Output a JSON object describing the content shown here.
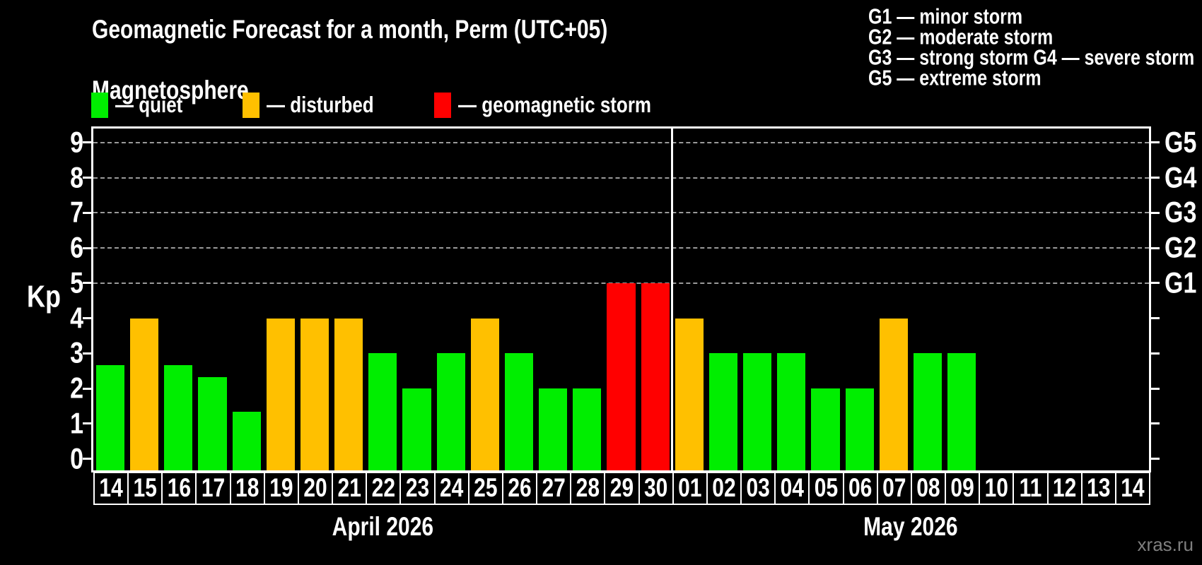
{
  "header": {
    "title": "Geomagnetic Forecast for a month, Perm (UTC+05)",
    "subtitle": "Magnetosphere",
    "watermark": "xras.ru"
  },
  "legend": {
    "items": [
      {
        "label": "— quiet",
        "status": "quiet"
      },
      {
        "label": "— disturbed",
        "status": "disturbed"
      },
      {
        "label": "— geomagnetic storm",
        "status": "storm"
      }
    ]
  },
  "storm_scale_legend": [
    "G1 — minor storm",
    "G2 — moderate storm",
    "G3 — strong storm",
    "G4 — severe storm",
    "G5 — extreme storm"
  ],
  "colors": {
    "quiet": "#00ee00",
    "disturbed": "#ffc000",
    "storm": "#ff0000",
    "axis": "#ffffff",
    "grid": "#9a9a9a",
    "watermark": "#7f7f7f"
  },
  "chart_data": {
    "type": "bar",
    "title": "Geomagnetic Forecast for a month, Perm (UTC+05)",
    "ylabel": "Kp",
    "yticks": [
      0,
      1,
      2,
      3,
      4,
      5,
      6,
      7,
      8,
      9
    ],
    "ylim": [
      -0.33,
      9.4
    ],
    "grid": "dashed horizontal lines at Kp 5-9",
    "grid_levels": [
      {
        "kp": 5,
        "label": "G1"
      },
      {
        "kp": 6,
        "label": "G2"
      },
      {
        "kp": 7,
        "label": "G3"
      },
      {
        "kp": 8,
        "label": "G4"
      },
      {
        "kp": 9,
        "label": "G5"
      }
    ],
    "months": [
      {
        "label": "April 2026",
        "days": 17
      },
      {
        "label": "May 2026",
        "days": 14
      }
    ],
    "days": [
      {
        "day": "14",
        "kp": 2.67,
        "status": "quiet"
      },
      {
        "day": "15",
        "kp": 4,
        "status": "disturbed"
      },
      {
        "day": "16",
        "kp": 2.67,
        "status": "quiet"
      },
      {
        "day": "17",
        "kp": 2.33,
        "status": "quiet"
      },
      {
        "day": "18",
        "kp": 1.33,
        "status": "quiet"
      },
      {
        "day": "19",
        "kp": 4,
        "status": "disturbed"
      },
      {
        "day": "20",
        "kp": 4,
        "status": "disturbed"
      },
      {
        "day": "21",
        "kp": 4,
        "status": "disturbed"
      },
      {
        "day": "22",
        "kp": 3,
        "status": "quiet"
      },
      {
        "day": "23",
        "kp": 2,
        "status": "quiet"
      },
      {
        "day": "24",
        "kp": 3,
        "status": "quiet"
      },
      {
        "day": "25",
        "kp": 4,
        "status": "disturbed"
      },
      {
        "day": "26",
        "kp": 3,
        "status": "quiet"
      },
      {
        "day": "27",
        "kp": 2,
        "status": "quiet"
      },
      {
        "day": "28",
        "kp": 2,
        "status": "quiet"
      },
      {
        "day": "29",
        "kp": 5,
        "status": "storm"
      },
      {
        "day": "30",
        "kp": 5,
        "status": "storm"
      },
      {
        "day": "01",
        "kp": 4,
        "status": "disturbed"
      },
      {
        "day": "02",
        "kp": 3,
        "status": "quiet"
      },
      {
        "day": "03",
        "kp": 3,
        "status": "quiet"
      },
      {
        "day": "04",
        "kp": 3,
        "status": "quiet"
      },
      {
        "day": "05",
        "kp": 2,
        "status": "quiet"
      },
      {
        "day": "06",
        "kp": 2,
        "status": "quiet"
      },
      {
        "day": "07",
        "kp": 4,
        "status": "disturbed"
      },
      {
        "day": "08",
        "kp": 3,
        "status": "quiet"
      },
      {
        "day": "09",
        "kp": 3,
        "status": "quiet"
      },
      {
        "day": "10",
        "kp": null,
        "status": null
      },
      {
        "day": "11",
        "kp": null,
        "status": null
      },
      {
        "day": "12",
        "kp": null,
        "status": null
      },
      {
        "day": "13",
        "kp": null,
        "status": null
      },
      {
        "day": "14",
        "kp": null,
        "status": null
      }
    ]
  }
}
